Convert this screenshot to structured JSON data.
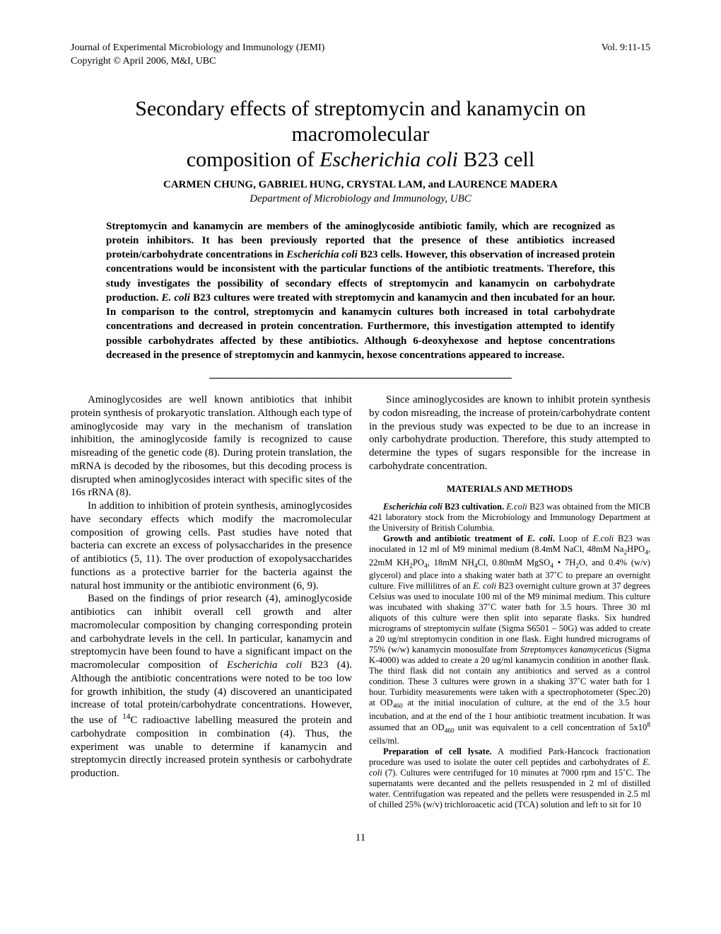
{
  "header": {
    "journal": "Journal of Experimental Microbiology and Immunology (JEMI)",
    "volume": "Vol. 9:11-15",
    "copyright": "Copyright © April 2006, M&I, UBC"
  },
  "title_line1": "Secondary effects of streptomycin and kanamycin on macromolecular",
  "title_line2_pre": "composition of ",
  "title_line2_italic": "Escherichia coli",
  "title_line2_post": " B23 cell",
  "authors": "CARMEN CHUNG, GABRIEL HUNG, CRYSTAL LAM, and LAURENCE MADERA",
  "affiliation": "Department of Microbiology and Immunology, UBC",
  "abstract": {
    "p1_pre": "Streptomycin and kanamycin are members of the aminoglycoside antibiotic family, which are recognized as protein inhibitors.  It has been previously reported that the presence of these antibiotics increased protein/carbohydrate concentrations in ",
    "p1_italic1": "Escherichia coli",
    "p1_mid": " B23 cells. However, this observation of increased protein concentrations would be inconsistent with the particular functions of the antibiotic treatments.  Therefore, this study investigates the possibility of secondary effects of streptomycin and kanamycin on carbohydrate production.  ",
    "p1_italic2": "E. coli",
    "p1_post": " B23 cultures were treated with streptomycin and kanamycin and then incubated for an hour.  In comparison to the control, streptomycin and kanamycin cultures both increased in total carbohydrate concentrations and decreased in protein concentration.  Furthermore, this investigation attempted to identify possible carbohydrates affected by these antibiotics.  Although 6-deoxyhexose and heptose concentrations decreased in the presence of streptomycin and kanmycin, hexose concentrations appeared to increase."
  },
  "separator": "_________________________________________________________",
  "body": {
    "left": {
      "p1": "Aminoglycosides are well known antibiotics that inhibit protein synthesis of prokaryotic translation. Although each type of aminoglycoside may vary in the mechanism of translation inhibition, the aminoglycoside family is recognized to cause misreading of the genetic code (8).  During protein translation, the mRNA is decoded by the ribosomes, but this decoding process is disrupted when aminoglycosides interact with specific sites of the 16s rRNA (8).",
      "p2": "In addition to inhibition of protein synthesis, aminoglycosides have secondary effects which modify the macromolecular composition of growing cells.  Past studies have noted that bacteria can excrete an excess of polysaccharides in the presence of antibiotics (5, 11). The over production of exopolysaccharides functions as a protective barrier for the bacteria against the natural host immunity or the antibiotic environment (6, 9).",
      "p3_pre": "Based on the findings of prior research (4), aminoglycoside antibiotics can inhibit overall cell growth and alter macromolecular composition by changing corresponding protein and carbohydrate levels in the cell.  In particular, kanamycin and streptomycin have been found to have a significant impact on the macromolecular composition of ",
      "p3_italic": "Escherichia coli",
      "p3_mid": " B23 (4).  Although the antibiotic concentrations were noted to be too low for growth inhibition, the study (4) discovered an unanticipated increase of total protein/carbohydrate concentrations. However, the use of ",
      "p3_sup": "14",
      "p3_post": "C radioactive labelling measured the protein and carbohydrate composition in combination (4).  Thus, the experiment was unable to determine if kanamycin and streptomycin directly increased protein synthesis or carbohydrate production."
    },
    "right": {
      "p1": "Since aminoglycosides are known to inhibit protein synthesis by codon misreading, the increase of protein/carbohydrate content in the previous study was expected to be due to an increase in only carbohydrate production.  Therefore, this study attempted to determine the types of sugars responsible for the increase in carbohydrate concentration.",
      "methods_heading": "MATERIALS AND METHODS",
      "m1_bold_italic": "Escherichia coli",
      "m1_bold": " B23 cultivation.",
      "m1_italic": "E.coli",
      "m1_text": " B23 was obtained from the MICB 421 laboratory stock from the Microbiology and Immunology Department at the University of British Columbia.",
      "m2_bold_pre": "Growth and antibiotic treatment of ",
      "m2_bold_italic": "E. coli",
      "m2_bold_post": ".",
      "m2_text_pre": "  Loop of ",
      "m2_italic1": "E.coli",
      "m2_text_1": " B23 was inoculated in 12 ml of M9 minimal medium (8.4mM NaCl, 48mM Na",
      "m2_text_2": "HPO",
      "m2_text_3": ", 22mM KH",
      "m2_text_4": "PO",
      "m2_text_5": ", 18mM NH",
      "m2_text_6": "Cl, 0.80mM MgSO",
      "m2_text_7": " • 7H",
      "m2_text_8": "O, and 0.4% (w/v) glycerol) and place into a shaking water bath at 37˚C to prepare an overnight culture.  Five millilitres of an ",
      "m2_italic2": "E. coli",
      "m2_text_9": " B23 overnight culture grown at 37 degrees Celsius was used to inoculate 100 ml of the M9 minimal medium. This culture was incubated with shaking 37˚C water bath for 3.5 hours. Three 30 ml aliquots of this culture were then split into separate flasks. Six hundred micrograms of streptomycin sulfate (Sigma S6501 – 50G) was added to create a 20 ug/ml streptomycin condition in one flask. Eight hundred micrograms of 75% (w/w) kanamycin monosulfate from ",
      "m2_italic3": "Streptomyces kanamyceticus",
      "m2_text_10": " (Sigma K-4000) was added to create a 20 ug/ml kanamycin condition in another flask. The third flask did not contain any antibiotics and served as a control condition. These 3 cultures were grown in a shaking 37˚C water bath for 1 hour.  Turbidity measurements were taken with a spectrophotometer (Spec.20) at OD",
      "m2_text_11": " at the initial inoculation of culture, at the end of the 3.5 hour incubation, and at the end of the 1 hour antibiotic treatment incubation. It was assumed that an OD",
      "m2_text_12": " unit was equivalent to a cell concentration of  5x10",
      "m2_text_13": " cells/ml.",
      "m3_bold": "Preparation of cell lysate.",
      "m3_text_pre": " A modified Park-Hancock fractionation procedure was used to isolate the outer cell peptides and carbohydrates of ",
      "m3_italic": "E. coli",
      "m3_text_post": " (7). Cultures were centrifuged for 10 minutes at 7000 rpm and 15˚C. The supernatants were decanted and the pellets resuspended in 2 ml of distilled water. Centrifugation was repeated and the pellets were resuspended in 2.5 ml of chilled 25% (w/v) trichloroacetic acid (TCA) solution and left to sit for 10"
    }
  },
  "page_number": "11"
}
